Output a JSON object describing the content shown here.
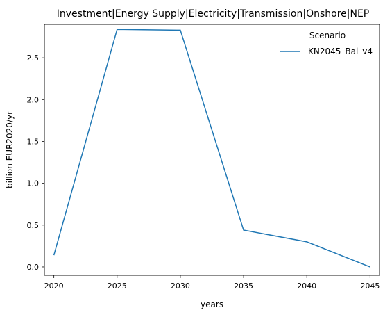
{
  "chart_data": {
    "type": "line",
    "title": "Investment|Energy Supply|Electricity|Transmission|Onshore|NEP",
    "xlabel": "years",
    "ylabel": "billion EUR2020/yr",
    "x": [
      2020,
      2025,
      2030,
      2035,
      2040,
      2045
    ],
    "xticks": [
      "2020",
      "2025",
      "2030",
      "2035",
      "2040",
      "2045"
    ],
    "yticks": [
      "0.0",
      "0.5",
      "1.0",
      "1.5",
      "2.0",
      "2.5"
    ],
    "xlim": [
      2019.25,
      2045.75
    ],
    "ylim": [
      -0.1,
      2.9
    ],
    "grid": false,
    "legend": {
      "title": "Scenario",
      "placement": "top-right"
    },
    "series": [
      {
        "name": "KN2045_Bal_v4",
        "color": "#1f77b4",
        "values": [
          0.14,
          2.84,
          2.83,
          0.44,
          0.3,
          0.0
        ]
      }
    ]
  }
}
